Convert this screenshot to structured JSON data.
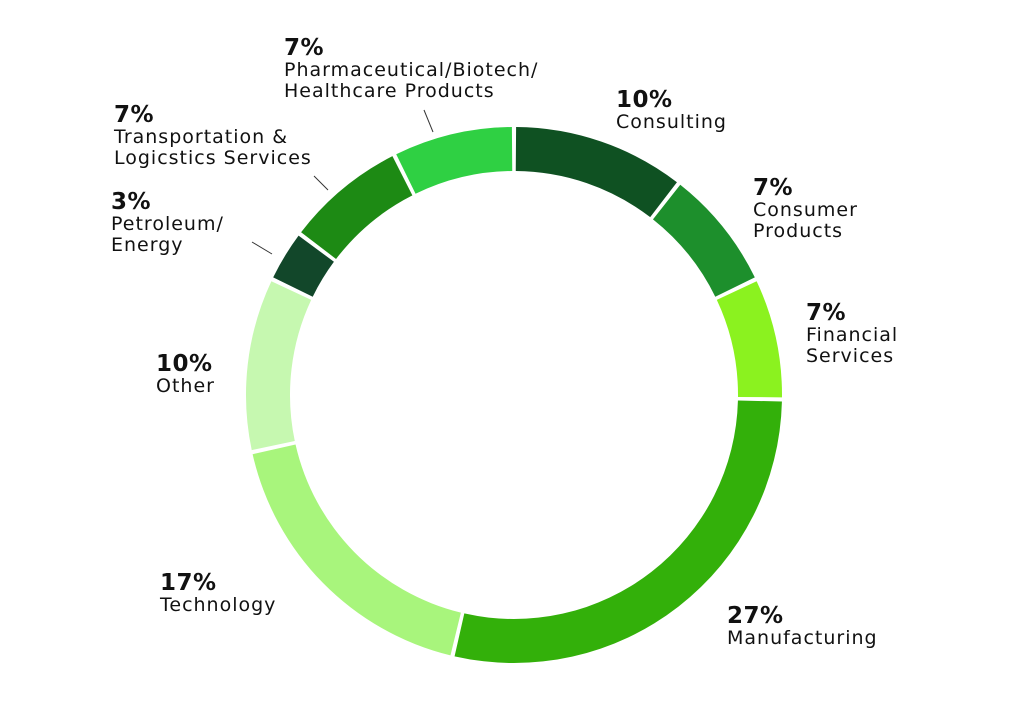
{
  "chart_data": {
    "type": "pie",
    "title": "",
    "donut": true,
    "start": "top",
    "direction": "clockwise",
    "slices": [
      {
        "name": "Consulting",
        "value": 10,
        "label_pct": "10%",
        "label_lines": [
          "Consulting"
        ],
        "color": "#0f5122"
      },
      {
        "name": "Consumer Products",
        "value": 7,
        "label_pct": "7%",
        "label_lines": [
          "Consumer",
          "Products"
        ],
        "color": "#1d8f2c"
      },
      {
        "name": "Financial Services",
        "value": 7,
        "label_pct": "7%",
        "label_lines": [
          "Financial",
          "Services"
        ],
        "color": "#8bf21f"
      },
      {
        "name": "Manufacturing",
        "value": 27,
        "label_pct": "27%",
        "label_lines": [
          "Manufacturing"
        ],
        "color": "#33b00a"
      },
      {
        "name": "Technology",
        "value": 17,
        "label_pct": "17%",
        "label_lines": [
          "Technology"
        ],
        "color": "#a8f57c"
      },
      {
        "name": "Other",
        "value": 10,
        "label_pct": "10%",
        "label_lines": [
          "Other"
        ],
        "color": "#c6f8b0"
      },
      {
        "name": "Petroleum/Energy",
        "value": 3,
        "label_pct": "3%",
        "label_lines": [
          "Petroleum/",
          "Energy"
        ],
        "color": "#12472a"
      },
      {
        "name": "Transportation & Logicstics Services",
        "value": 7,
        "label_pct": "7%",
        "label_lines": [
          "Transportation &",
          "Logicstics Services"
        ],
        "color": "#1d8a14"
      },
      {
        "name": "Pharmaceutical/Biotech/Healthcare Products",
        "value": 7,
        "label_pct": "7%",
        "label_lines": [
          "Pharmaceutical/Biotech/",
          "Healthcare Products"
        ],
        "color": "#2fd043"
      }
    ]
  }
}
